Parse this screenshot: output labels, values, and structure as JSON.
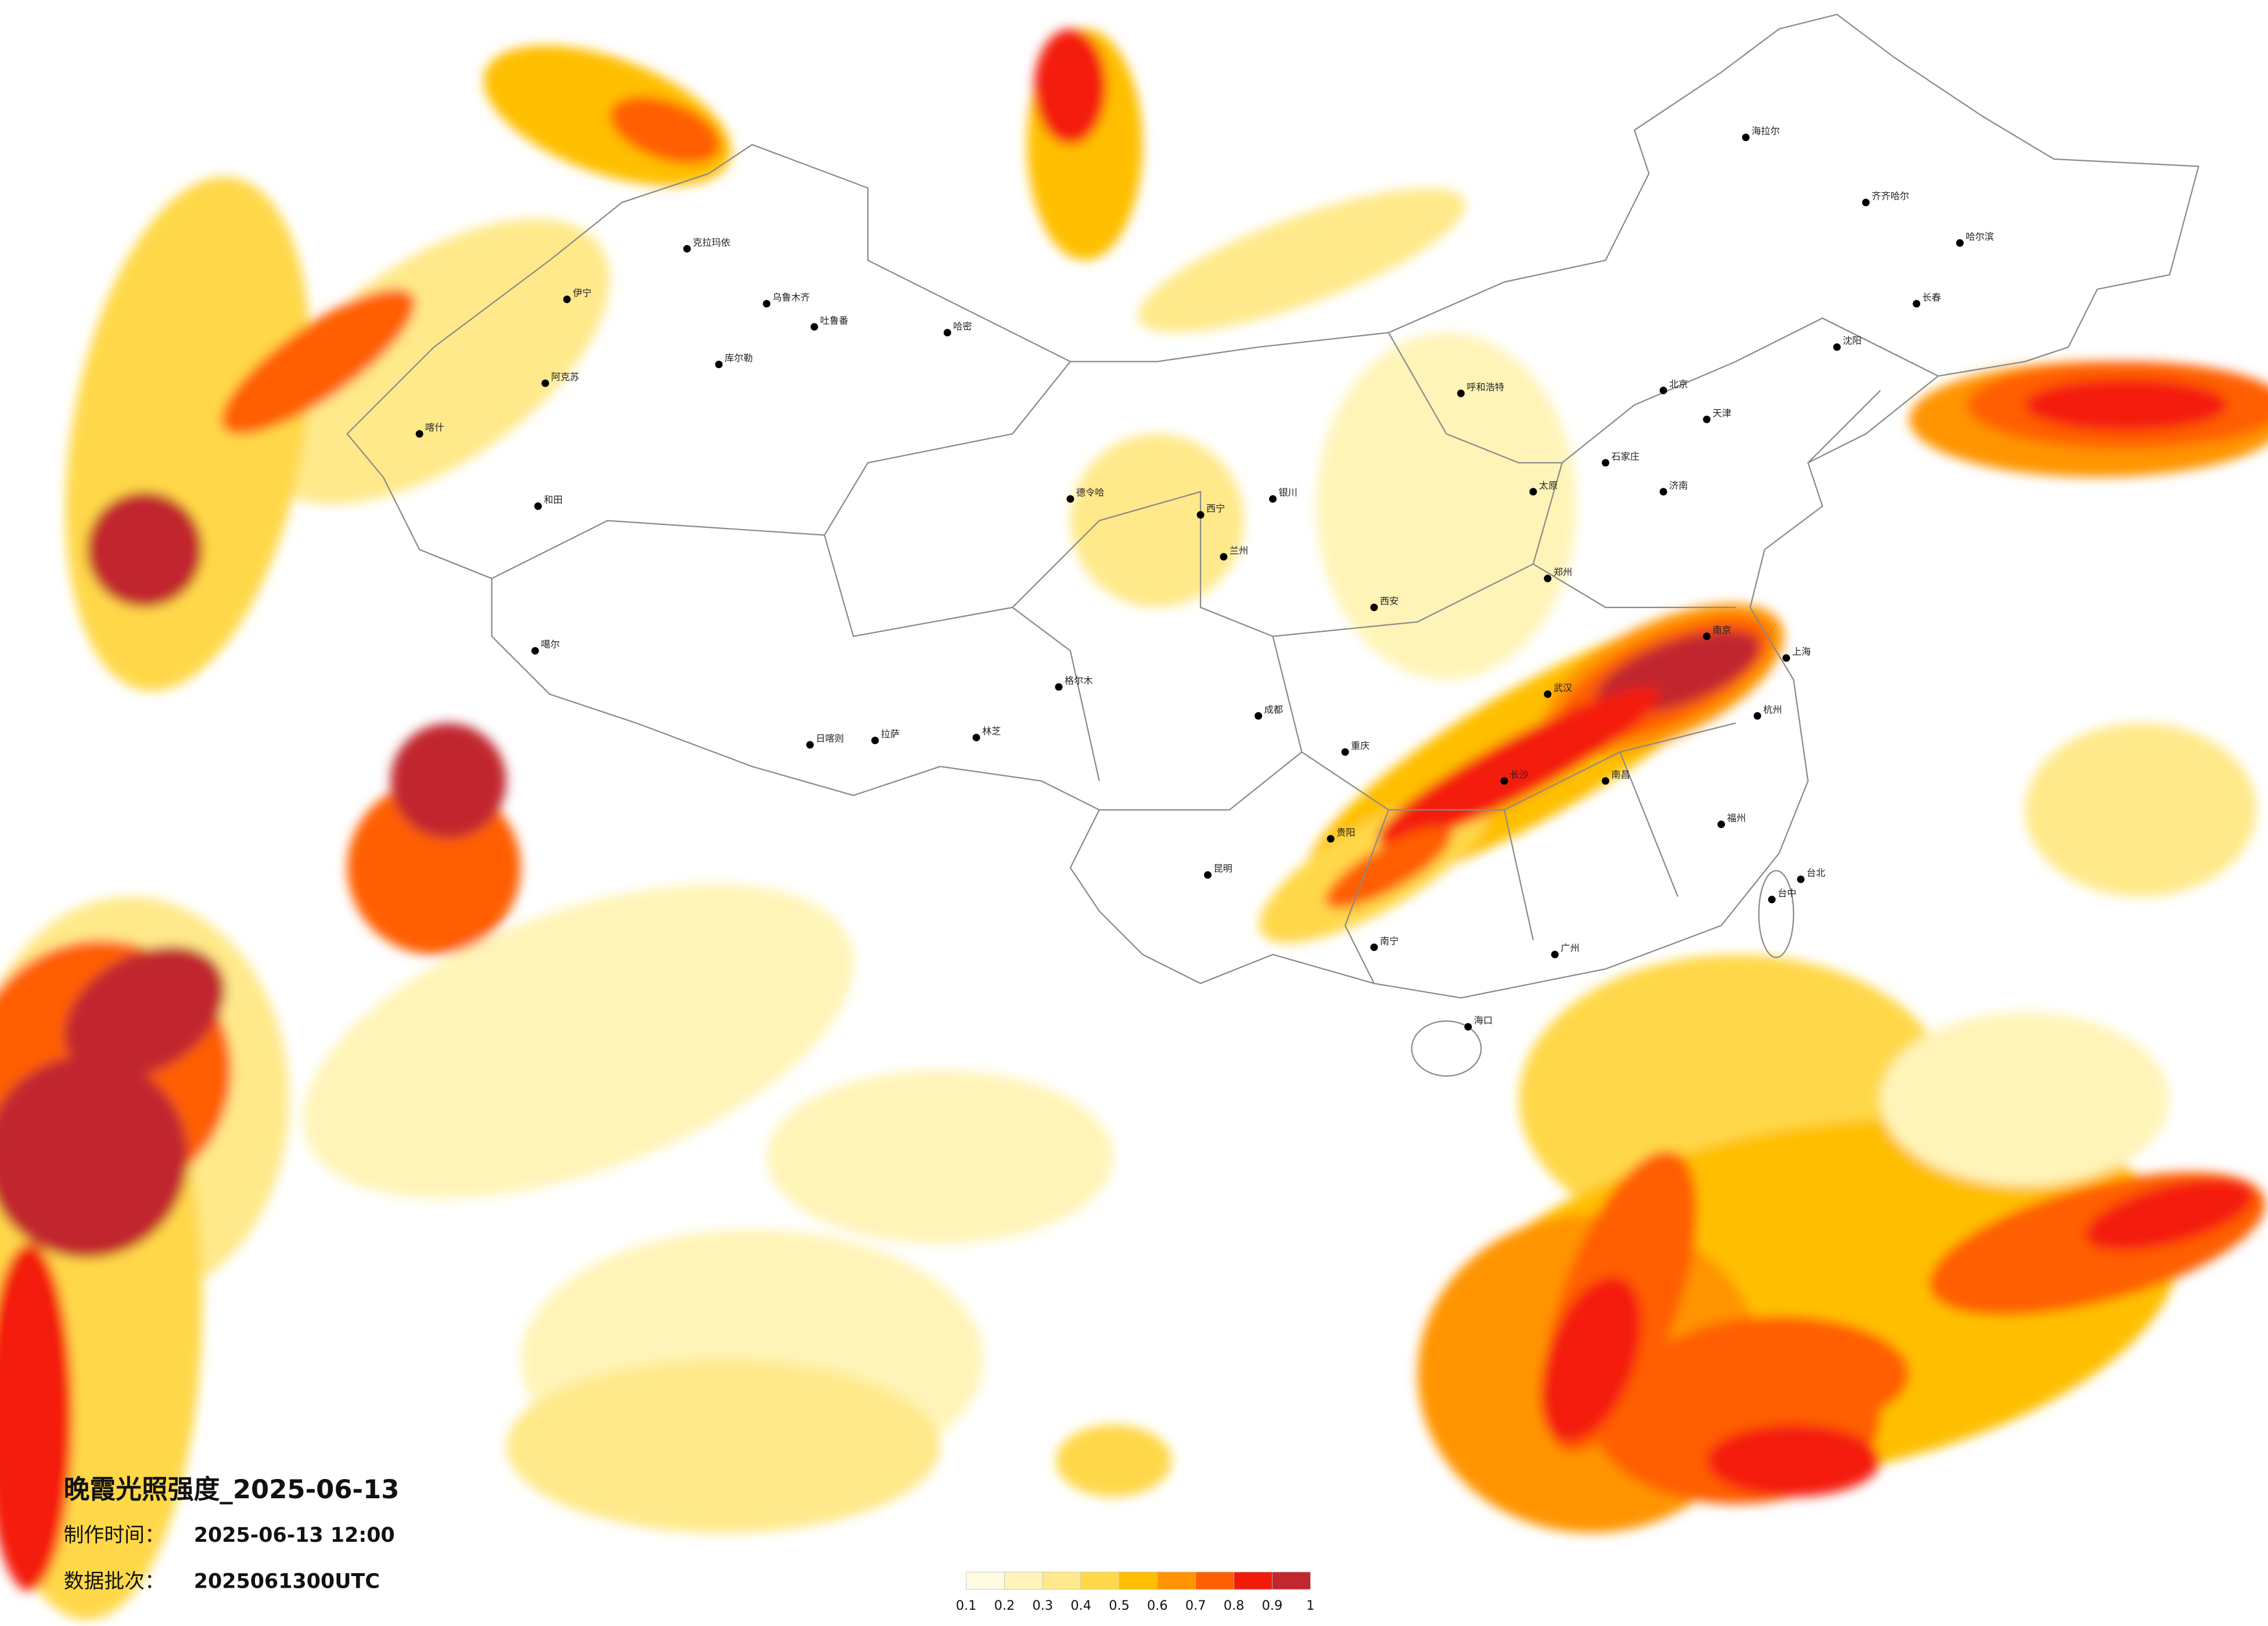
{
  "header": {
    "title": "晚霞光照强度_2025-06-13",
    "made_label": "制作时间：",
    "made_time": "2025-06-13 12:00",
    "batch_label": "数据批次：",
    "batch": "2025061300UTC"
  },
  "legend": {
    "ticks": [
      0.1,
      0.2,
      0.3,
      0.4,
      0.5,
      0.6,
      0.7,
      0.8,
      0.9,
      1
    ],
    "colors": [
      "#fffbe3",
      "#fff4b8",
      "#ffe98a",
      "#ffd84a",
      "#ffbf00",
      "#ff9400",
      "#ff5e00",
      "#f41a0a",
      "#c1272d"
    ]
  },
  "cities": [
    "克拉玛依",
    "伊宁",
    "乌鲁木齐",
    "吐鲁番",
    "哈密",
    "库尔勒",
    "阿克苏",
    "喀什",
    "和田",
    "噶尔",
    "日喀则",
    "拉萨",
    "林芝",
    "格尔木",
    "德令哈",
    "西宁",
    "兰州",
    "银川",
    "呼和浩特",
    "海拉尔",
    "齐齐哈尔",
    "哈尔滨",
    "长春",
    "沈阳",
    "北京",
    "天津",
    "石家庄",
    "太原",
    "西安",
    "郑州",
    "济南",
    "南京",
    "上海",
    "杭州",
    "武汉",
    "长沙",
    "南昌",
    "福州",
    "广州",
    "南宁",
    "贵阳",
    "昆明",
    "重庆",
    "成都",
    "海口",
    "台北",
    "台中"
  ]
}
